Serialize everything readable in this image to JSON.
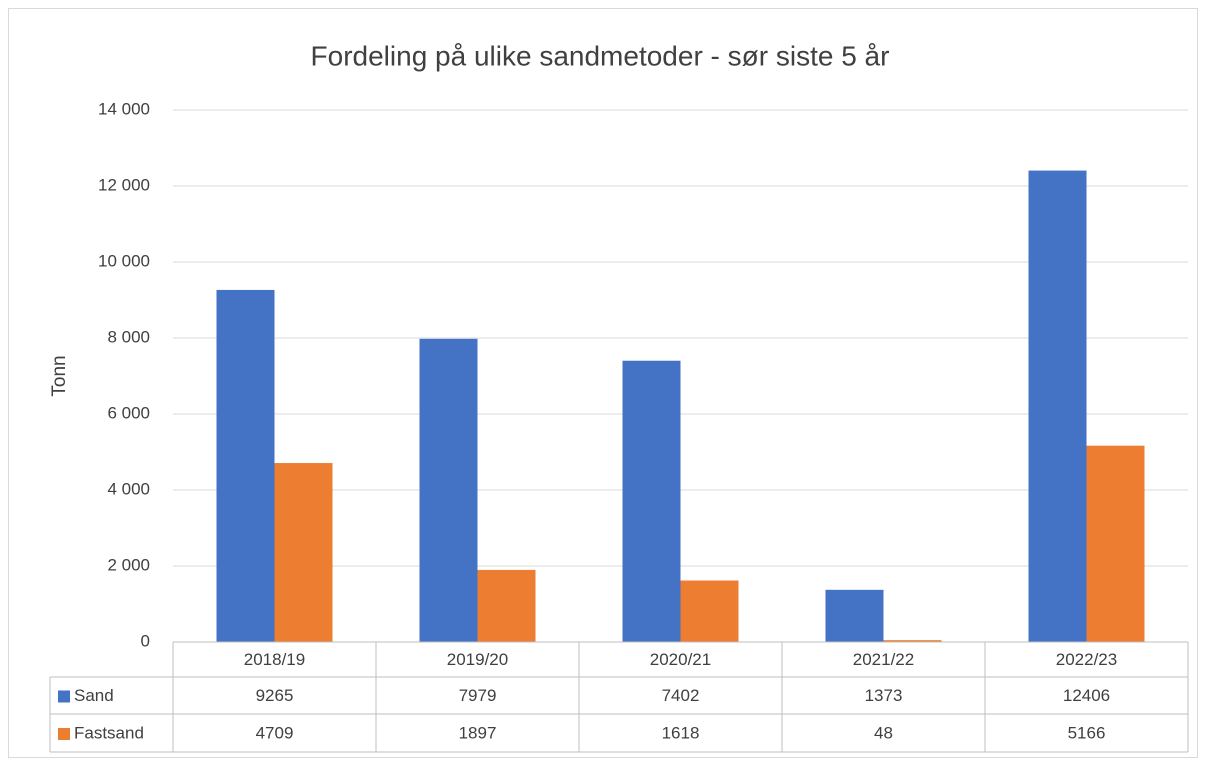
{
  "chart_data": {
    "type": "bar",
    "title": "Fordeling på ulike sandmetoder - sør siste 5 år",
    "y_label": "Tonn",
    "categories": [
      "2018/19",
      "2019/20",
      "2020/21",
      "2021/22",
      "2022/23"
    ],
    "series": [
      {
        "name": "Sand",
        "color": "#4472c4",
        "values": [
          9265,
          7979,
          7402,
          1373,
          12406
        ]
      },
      {
        "name": "Fastsand",
        "color": "#ed7d31",
        "values": [
          4709,
          1897,
          1618,
          48,
          5166
        ]
      }
    ],
    "ylim": [
      0,
      14000
    ],
    "yticks": [
      0,
      {
        "value": 2000,
        "label": "2 000"
      },
      {
        "value": 4000,
        "label": "4 000"
      },
      {
        "value": 6000,
        "label": "6 000"
      },
      {
        "value": 8000,
        "label": "8 000"
      },
      {
        "value": 10000,
        "label": "10 000"
      },
      {
        "value": 12000,
        "label": "12 000"
      },
      {
        "value": 14000,
        "label": "14 000"
      }
    ],
    "grid": true,
    "data_table": true
  }
}
